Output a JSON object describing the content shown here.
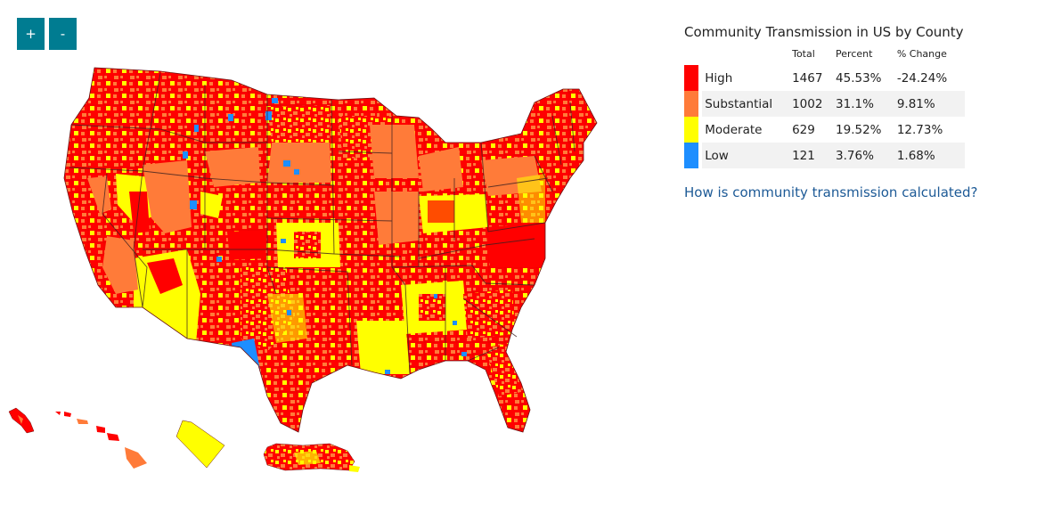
{
  "controls": {
    "zoom_in_label": "+",
    "zoom_out_label": "-"
  },
  "legend": {
    "title": "Community Transmission in US by County",
    "headers": {
      "total": "Total",
      "percent": "Percent",
      "change": "% Change"
    },
    "rows": [
      {
        "level": "High",
        "total": "1467",
        "percent": "45.53%",
        "change": "-24.24%",
        "color": "#ff0000"
      },
      {
        "level": "Substantial",
        "total": "1002",
        "percent": "31.1%",
        "change": "9.81%",
        "color": "#ff7b39"
      },
      {
        "level": "Moderate",
        "total": "629",
        "percent": "19.52%",
        "change": "12.73%",
        "color": "#ffff00"
      },
      {
        "level": "Low",
        "total": "121",
        "percent": "3.76%",
        "change": "1.68%",
        "color": "#1d8eff"
      }
    ]
  },
  "link": {
    "text": "How is community transmission calculated?"
  },
  "map": {
    "regions": [
      "contiguous-us",
      "alaska",
      "hawaii",
      "puerto-rico"
    ],
    "dominant_level": "High",
    "colors": {
      "high": "#ff0000",
      "substantial": "#ff7b39",
      "moderate": "#ffff00",
      "low": "#1d8eff",
      "border": "#3a2020"
    }
  }
}
